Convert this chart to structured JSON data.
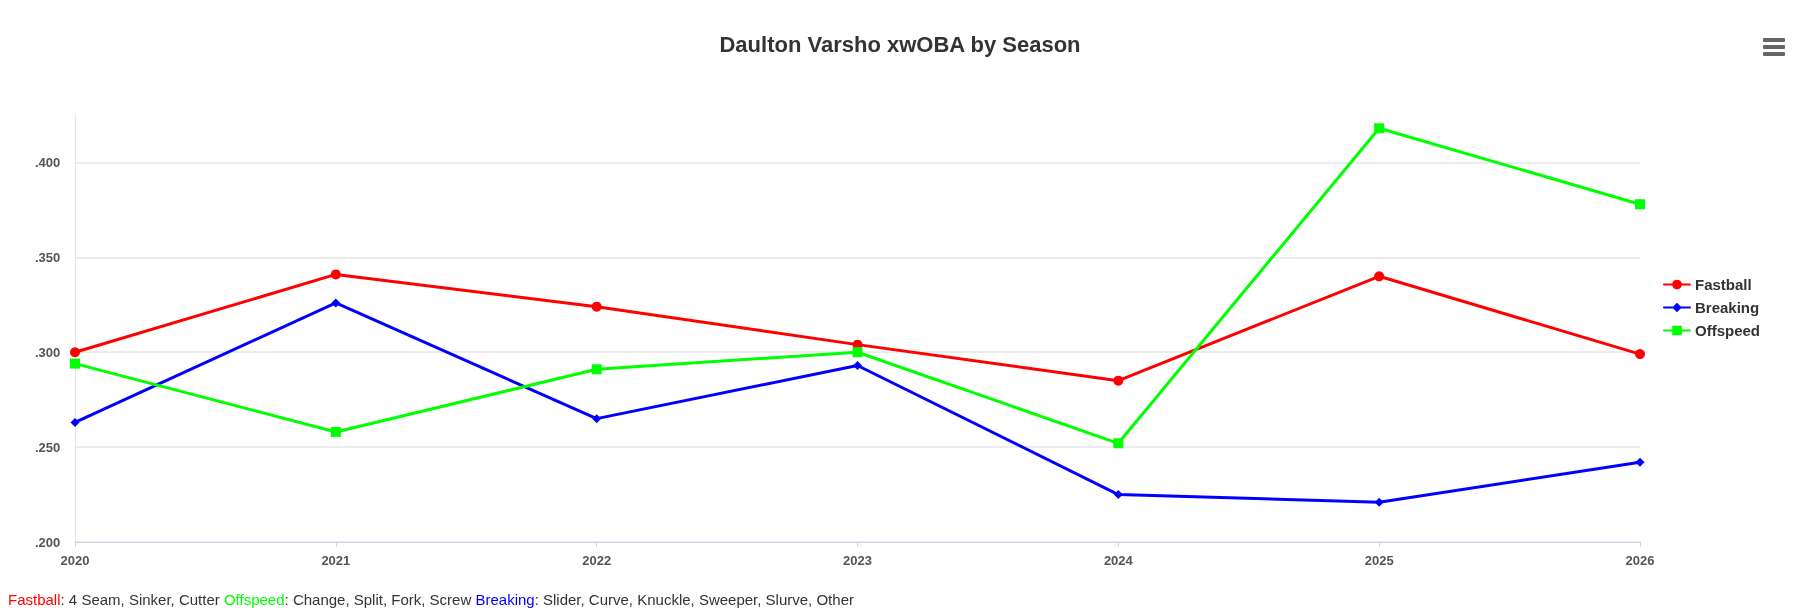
{
  "chart_data": {
    "type": "line",
    "title": "Daulton Varsho xwOBA by Season",
    "x": [
      2020,
      2021,
      2022,
      2023,
      2024,
      2025,
      2026
    ],
    "xlim": [
      2020,
      2026
    ],
    "xticks": [
      2020,
      2021,
      2022,
      2023,
      2024,
      2025,
      2026
    ],
    "ylim": [
      0.2,
      0.425
    ],
    "yticks": [
      {
        "value": 0.2,
        "label": ".200"
      },
      {
        "value": 0.25,
        "label": ".250"
      },
      {
        "value": 0.3,
        "label": ".300"
      },
      {
        "value": 0.35,
        "label": ".350"
      },
      {
        "value": 0.4,
        "label": ".400"
      }
    ],
    "grid": "y",
    "legend": "right",
    "line_style": "solid",
    "series": [
      {
        "name": "Fastball",
        "color": "#ff0000",
        "marker": "circle",
        "values": [
          0.3,
          0.341,
          0.324,
          0.304,
          0.285,
          0.34,
          0.299
        ]
      },
      {
        "name": "Breaking",
        "color": "#0000ff",
        "marker": "diamond",
        "values": [
          0.263,
          0.326,
          0.265,
          0.293,
          0.225,
          0.221,
          0.242
        ]
      },
      {
        "name": "Offspeed",
        "color": "#00ff00",
        "marker": "square",
        "values": [
          0.294,
          0.258,
          0.291,
          0.3,
          0.252,
          0.418,
          0.378
        ]
      }
    ],
    "annotations": [
      "Fastball: 4 Seam, Sinker, Cutter",
      "Offspeed: Change, Split, Fork, Screw",
      "Breaking: Slider, Curve, Knuckle, Sweeper, Slurve, Other"
    ]
  }
}
